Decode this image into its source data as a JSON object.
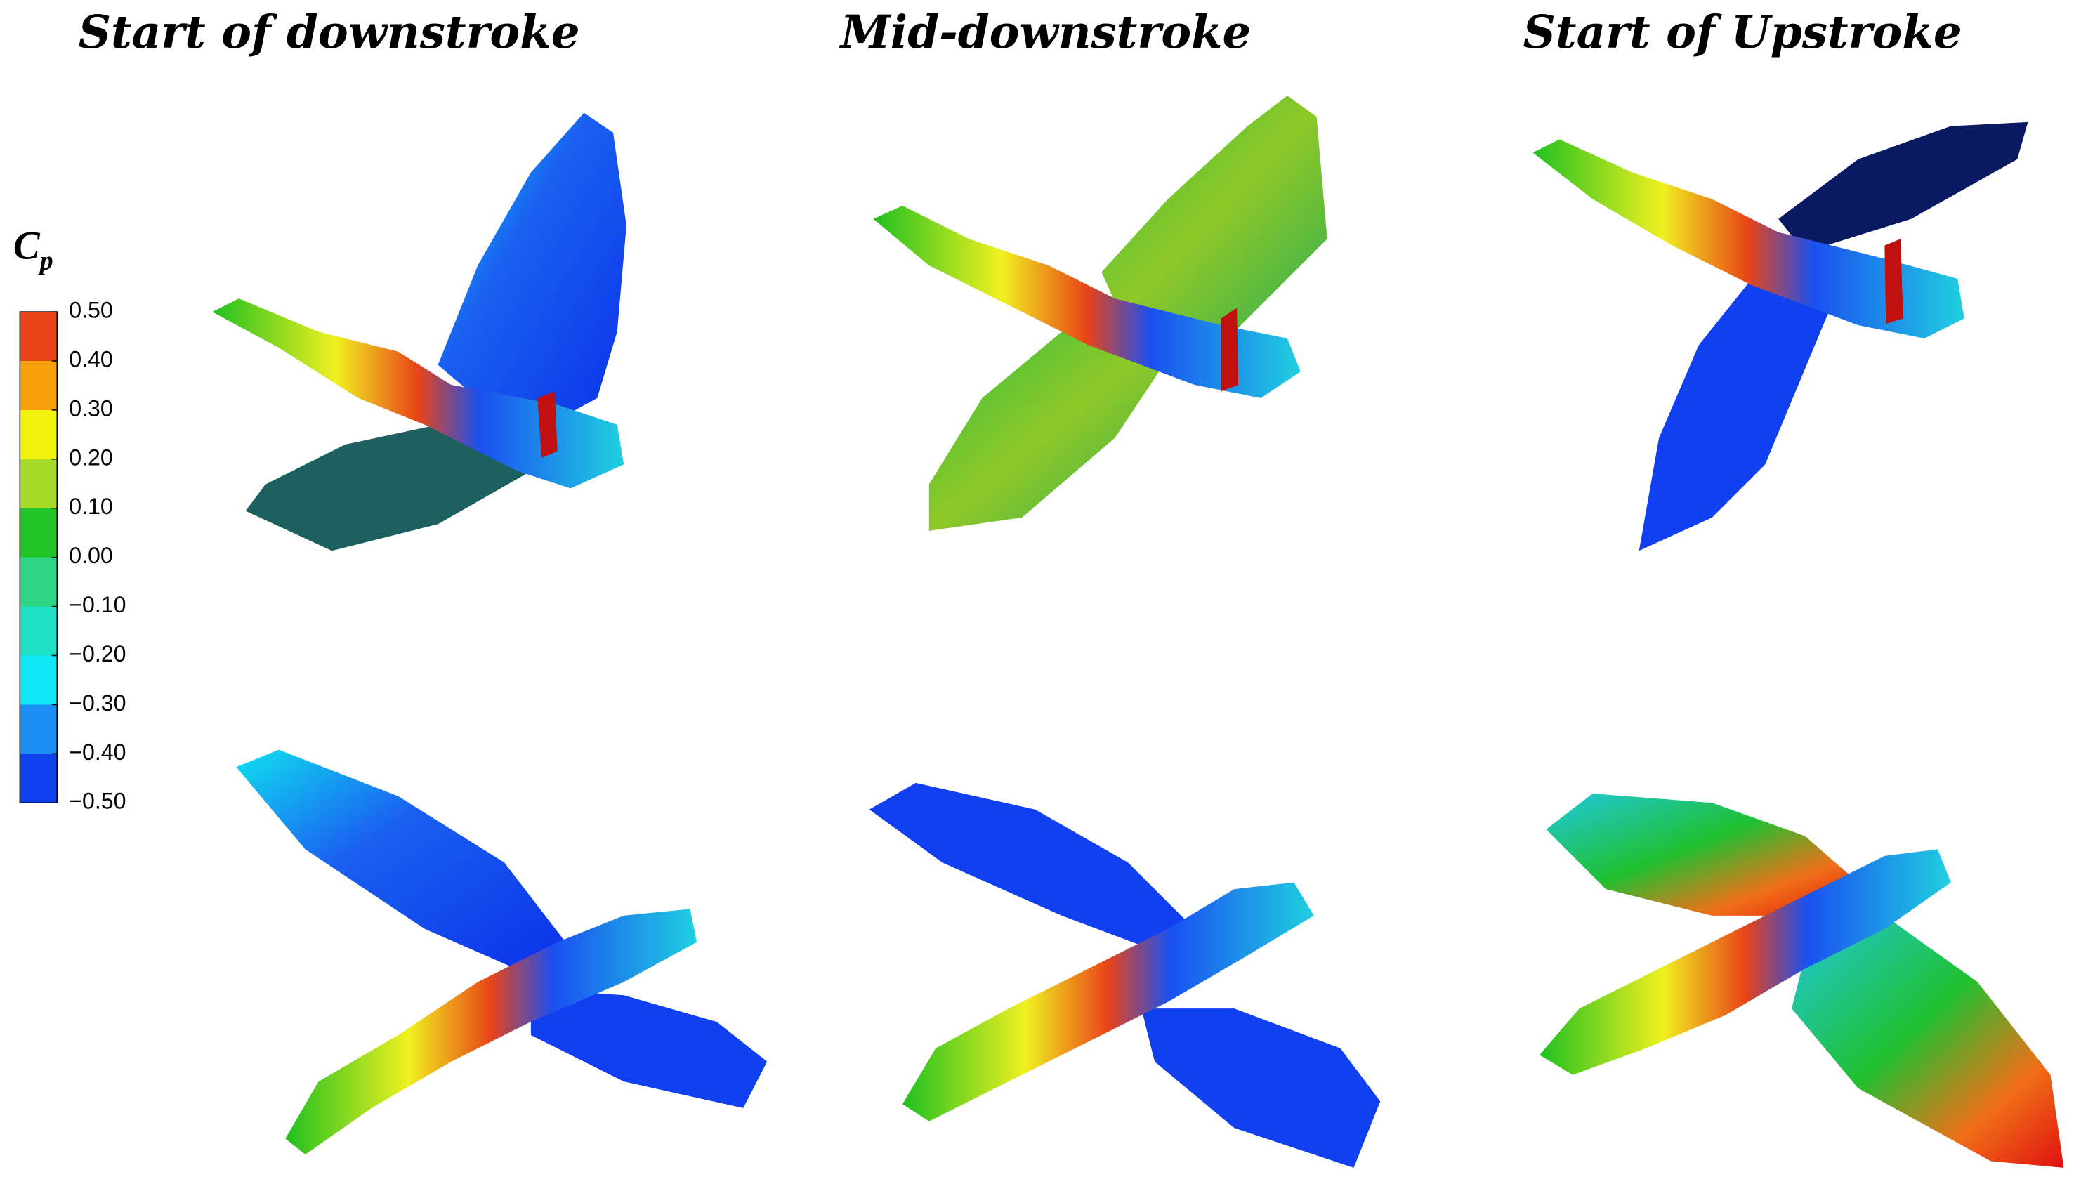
{
  "titles": [
    "Start of downstroke",
    "Mid-downstroke",
    "Start of Upstroke"
  ],
  "colorbar": {
    "label": {
      "main": "C",
      "sub": "p"
    },
    "ticks": [
      {
        "value": 0.5,
        "label": "0.50"
      },
      {
        "value": 0.4,
        "label": "0.40"
      },
      {
        "value": 0.3,
        "label": "0.30"
      },
      {
        "value": 0.2,
        "label": "0.20"
      },
      {
        "value": 0.1,
        "label": "0.10"
      },
      {
        "value": 0,
        "label": "0.00"
      },
      {
        "value": -0.1,
        "label": "−0.10"
      },
      {
        "value": -0.2,
        "label": "−0.20"
      },
      {
        "value": -0.3,
        "label": "−0.30"
      },
      {
        "value": -0.4,
        "label": "−0.40"
      },
      {
        "value": -0.5,
        "label": "−0.50"
      }
    ],
    "colors": [
      "#e8441a",
      "#f7a00c",
      "#f4f010",
      "#a6dc2a",
      "#22c42a",
      "#2ed684",
      "#1ee0c4",
      "#10e8f8",
      "#1a90f4",
      "#1040f0"
    ]
  }
}
